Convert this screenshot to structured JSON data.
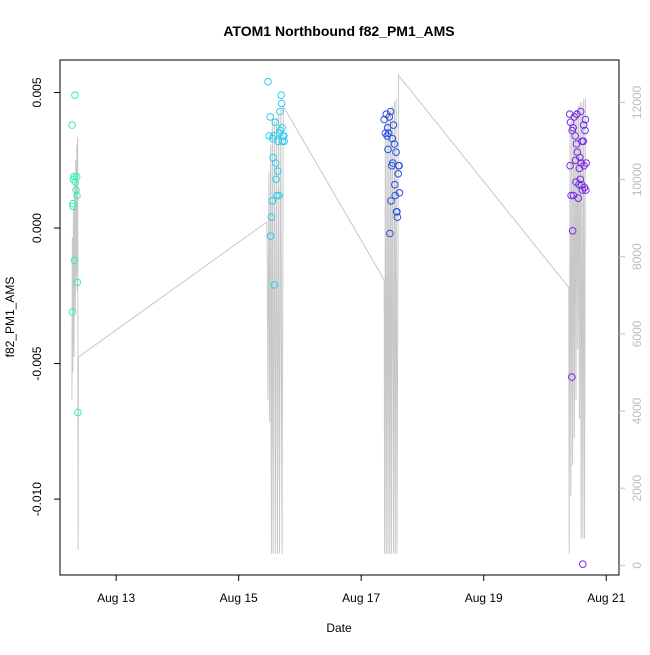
{
  "chart_data": {
    "type": "scatter",
    "title": "ATOM1 Northbound f82_PM1_AMS",
    "xlabel": "Date",
    "ylabel": "f82_PM1_AMS",
    "x_type": "date",
    "xlim": [
      "2018-08-12T02:00",
      "2018-08-21T05:00"
    ],
    "x_ticks": [
      "Aug 13",
      "Aug 15",
      "Aug 17",
      "Aug 19",
      "Aug 21"
    ],
    "x_tick_dates": [
      "2018-08-13T00:00",
      "2018-08-15T00:00",
      "2018-08-17T00:00",
      "2018-08-19T00:00",
      "2018-08-21T00:00"
    ],
    "ylim": [
      -0.0128,
      0.0062
    ],
    "y_ticks": [
      -0.01,
      -0.005,
      0.0,
      0.005
    ],
    "y_tick_labels": [
      "-0.010",
      "-0.005",
      "0.000",
      "0.005"
    ],
    "y2_ticks": [
      0,
      2000,
      4000,
      6000,
      8000,
      10000,
      12000
    ],
    "y2_tick_labels": [
      "0",
      "2000",
      "4000",
      "6000",
      "8000",
      "10000",
      "12000"
    ],
    "y2_lim": [
      -250,
      13100
    ],
    "grid": false,
    "legend": "none",
    "colors": {
      "trace": "#c8c8c8",
      "frame": "#000000",
      "right_axis": "#bdbdbd"
    },
    "point_marker": "open-circle",
    "series": [
      {
        "color": "#33f2b0",
        "points": [
          [
            "2018-08-12T06:45",
            0.0038
          ],
          [
            "2018-08-12T06:50",
            -0.0031
          ],
          [
            "2018-08-12T07:00",
            0.0009
          ],
          [
            "2018-08-12T07:05",
            0.0008
          ],
          [
            "2018-08-12T07:15",
            0.0018
          ],
          [
            "2018-08-12T07:30",
            0.0019
          ],
          [
            "2018-08-12T07:40",
            -0.0012
          ],
          [
            "2018-08-12T07:50",
            0.0049
          ],
          [
            "2018-08-12T08:00",
            0.0017
          ],
          [
            "2018-08-12T08:15",
            0.0014
          ],
          [
            "2018-08-12T08:30",
            0.0019
          ],
          [
            "2018-08-12T08:40",
            0.0012
          ],
          [
            "2018-08-12T08:50",
            -0.002
          ],
          [
            "2018-08-12T09:00",
            -0.0068
          ]
        ]
      },
      {
        "color": "#2ecbf0",
        "points": [
          [
            "2018-08-15T11:30",
            0.0054
          ],
          [
            "2018-08-15T12:00",
            0.0034
          ],
          [
            "2018-08-15T12:20",
            0.0041
          ],
          [
            "2018-08-15T12:30",
            -0.0003
          ],
          [
            "2018-08-15T12:50",
            0.0004
          ],
          [
            "2018-08-15T13:10",
            0.001
          ],
          [
            "2018-08-15T13:20",
            0.0033
          ],
          [
            "2018-08-15T13:30",
            0.0026
          ],
          [
            "2018-08-15T13:40",
            0.0034
          ],
          [
            "2018-08-15T14:00",
            -0.0021
          ],
          [
            "2018-08-15T14:20",
            0.0039
          ],
          [
            "2018-08-15T14:30",
            0.0024
          ],
          [
            "2018-08-15T14:40",
            0.0018
          ],
          [
            "2018-08-15T15:00",
            0.0012
          ],
          [
            "2018-08-15T15:20",
            0.0021
          ],
          [
            "2018-08-15T15:30",
            0.0032
          ],
          [
            "2018-08-15T15:50",
            0.0012
          ],
          [
            "2018-08-15T16:00",
            0.0035
          ],
          [
            "2018-08-15T16:10",
            0.0043
          ],
          [
            "2018-08-15T16:20",
            0.0036
          ],
          [
            "2018-08-15T16:40",
            0.0049
          ],
          [
            "2018-08-15T16:50",
            0.0046
          ],
          [
            "2018-08-15T17:00",
            0.0037
          ],
          [
            "2018-08-15T17:10",
            0.0032
          ],
          [
            "2018-08-15T17:20",
            0.0034
          ],
          [
            "2018-08-15T17:40",
            0.0034
          ],
          [
            "2018-08-15T17:50",
            0.0032
          ]
        ]
      },
      {
        "color": "#2a4fe0",
        "points": [
          [
            "2018-08-17T09:00",
            0.004
          ],
          [
            "2018-08-17T09:30",
            0.0035
          ],
          [
            "2018-08-17T09:50",
            0.0042
          ],
          [
            "2018-08-17T10:10",
            0.0034
          ],
          [
            "2018-08-17T10:20",
            0.0037
          ],
          [
            "2018-08-17T10:30",
            0.0029
          ],
          [
            "2018-08-17T10:45",
            0.0035
          ],
          [
            "2018-08-17T11:00",
            0.0041
          ],
          [
            "2018-08-17T11:15",
            -0.0002
          ],
          [
            "2018-08-17T11:30",
            0.0043
          ],
          [
            "2018-08-17T11:40",
            0.001
          ],
          [
            "2018-08-17T12:00",
            0.0023
          ],
          [
            "2018-08-17T12:10",
            0.0033
          ],
          [
            "2018-08-17T12:20",
            0.0024
          ],
          [
            "2018-08-17T12:40",
            0.0038
          ],
          [
            "2018-08-17T13:00",
            0.0031
          ],
          [
            "2018-08-17T13:10",
            0.0016
          ],
          [
            "2018-08-17T13:20",
            0.0012
          ],
          [
            "2018-08-17T13:40",
            0.0028
          ],
          [
            "2018-08-17T13:50",
            0.0006
          ],
          [
            "2018-08-17T14:00",
            0.0006
          ],
          [
            "2018-08-17T14:10",
            0.0004
          ],
          [
            "2018-08-17T14:30",
            0.002
          ],
          [
            "2018-08-17T14:40",
            0.0023
          ],
          [
            "2018-08-17T14:50",
            0.0023
          ],
          [
            "2018-08-17T15:00",
            0.0013
          ]
        ]
      },
      {
        "color": "#7a2ae6",
        "points": [
          [
            "2018-08-20T09:40",
            0.0042
          ],
          [
            "2018-08-20T09:50",
            0.0023
          ],
          [
            "2018-08-20T10:00",
            0.0039
          ],
          [
            "2018-08-20T10:15",
            0.0012
          ],
          [
            "2018-08-20T10:30",
            -0.0055
          ],
          [
            "2018-08-20T10:40",
            0.0036
          ],
          [
            "2018-08-20T10:50",
            -0.0001
          ],
          [
            "2018-08-20T11:00",
            0.0037
          ],
          [
            "2018-08-20T11:10",
            0.0012
          ],
          [
            "2018-08-20T11:30",
            0.0041
          ],
          [
            "2018-08-20T11:50",
            0.0034
          ],
          [
            "2018-08-20T12:00",
            0.0025
          ],
          [
            "2018-08-20T12:10",
            0.0017
          ],
          [
            "2018-08-20T12:20",
            0.0031
          ],
          [
            "2018-08-20T12:30",
            0.0042
          ],
          [
            "2018-08-20T12:40",
            0.0028
          ],
          [
            "2018-08-20T13:00",
            0.0011
          ],
          [
            "2018-08-20T13:20",
            0.0016
          ],
          [
            "2018-08-20T13:30",
            0.0022
          ],
          [
            "2018-08-20T13:40",
            0.0026
          ],
          [
            "2018-08-20T13:50",
            0.0018
          ],
          [
            "2018-08-20T14:00",
            0.0043
          ],
          [
            "2018-08-20T14:10",
            0.0024
          ],
          [
            "2018-08-20T14:20",
            0.0016
          ],
          [
            "2018-08-20T14:30",
            0.0032
          ],
          [
            "2018-08-20T14:40",
            0.0014
          ],
          [
            "2018-08-20T14:50",
            -0.0124
          ],
          [
            "2018-08-20T15:00",
            0.0032
          ],
          [
            "2018-08-20T15:10",
            0.0038
          ],
          [
            "2018-08-20T15:20",
            0.0023
          ],
          [
            "2018-08-20T15:30",
            0.0015
          ],
          [
            "2018-08-20T15:40",
            0.0036
          ],
          [
            "2018-08-20T15:50",
            0.004
          ],
          [
            "2018-08-20T16:00",
            0.0014
          ],
          [
            "2018-08-20T16:10",
            0.0024
          ]
        ]
      }
    ],
    "trace": {
      "axis": "right",
      "values": [
        [
          "2018-08-12T06:40",
          4300
        ],
        [
          "2018-08-12T06:50",
          8500
        ],
        [
          "2018-08-12T07:00",
          5000
        ],
        [
          "2018-08-12T07:15",
          9300
        ],
        [
          "2018-08-12T07:30",
          5400
        ],
        [
          "2018-08-12T07:45",
          9900
        ],
        [
          "2018-08-12T08:00",
          6600
        ],
        [
          "2018-08-12T08:10",
          10500
        ],
        [
          "2018-08-12T08:25",
          7500
        ],
        [
          "2018-08-12T08:35",
          10900
        ],
        [
          "2018-08-12T08:45",
          7100
        ],
        [
          "2018-08-12T08:55",
          11100
        ],
        [
          "2018-08-12T09:05",
          400
        ],
        [
          "2018-08-12T09:15",
          5400
        ],
        [
          "2018-08-15T11:00",
          8900
        ],
        [
          "2018-08-15T11:10",
          8100
        ],
        [
          "2018-08-15T11:30",
          4300
        ],
        [
          "2018-08-15T11:50",
          10200
        ],
        [
          "2018-08-15T12:10",
          3700
        ],
        [
          "2018-08-15T12:30",
          10900
        ],
        [
          "2018-08-15T12:50",
          300
        ],
        [
          "2018-08-15T13:10",
          11500
        ],
        [
          "2018-08-15T13:30",
          300
        ],
        [
          "2018-08-15T14:00",
          11500
        ],
        [
          "2018-08-15T14:20",
          300
        ],
        [
          "2018-08-15T14:50",
          11600
        ],
        [
          "2018-08-15T15:10",
          300
        ],
        [
          "2018-08-15T15:40",
          11700
        ],
        [
          "2018-08-15T16:00",
          300
        ],
        [
          "2018-08-15T16:30",
          11800
        ],
        [
          "2018-08-15T17:00",
          300
        ],
        [
          "2018-08-15T17:30",
          11900
        ],
        [
          "2018-08-17T09:00",
          7400
        ],
        [
          "2018-08-17T09:10",
          300
        ],
        [
          "2018-08-17T09:30",
          11500
        ],
        [
          "2018-08-17T09:50",
          300
        ],
        [
          "2018-08-17T10:10",
          11600
        ],
        [
          "2018-08-17T10:30",
          300
        ],
        [
          "2018-08-17T10:50",
          11700
        ],
        [
          "2018-08-17T11:10",
          300
        ],
        [
          "2018-08-17T11:30",
          11800
        ],
        [
          "2018-08-17T11:50",
          300
        ],
        [
          "2018-08-17T12:10",
          11900
        ],
        [
          "2018-08-17T12:40",
          300
        ],
        [
          "2018-08-17T13:00",
          12000
        ],
        [
          "2018-08-17T13:20",
          300
        ],
        [
          "2018-08-17T13:40",
          12100
        ],
        [
          "2018-08-17T14:00",
          300
        ],
        [
          "2018-08-17T14:40",
          12700
        ],
        [
          "2018-08-20T09:20",
          7200
        ],
        [
          "2018-08-20T09:30",
          300
        ],
        [
          "2018-08-20T09:50",
          11500
        ],
        [
          "2018-08-20T10:10",
          1800
        ],
        [
          "2018-08-20T10:30",
          11600
        ],
        [
          "2018-08-20T10:50",
          2600
        ],
        [
          "2018-08-20T11:10",
          11700
        ],
        [
          "2018-08-20T11:30",
          3300
        ],
        [
          "2018-08-20T11:50",
          11800
        ],
        [
          "2018-08-20T12:10",
          4300
        ],
        [
          "2018-08-20T12:30",
          11800
        ],
        [
          "2018-08-20T12:50",
          5600
        ],
        [
          "2018-08-20T13:10",
          11900
        ],
        [
          "2018-08-20T13:30",
          3800
        ],
        [
          "2018-08-20T13:50",
          12000
        ],
        [
          "2018-08-20T14:10",
          700
        ],
        [
          "2018-08-20T14:30",
          12000
        ],
        [
          "2018-08-20T14:50",
          700
        ],
        [
          "2018-08-20T15:10",
          12100
        ],
        [
          "2018-08-20T15:30",
          700
        ],
        [
          "2018-08-20T15:50",
          12100
        ]
      ]
    }
  }
}
